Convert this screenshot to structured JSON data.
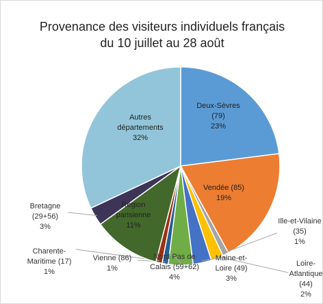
{
  "chart_data": {
    "type": "pie",
    "title": "Provenance des visiteurs individuels français du 10 juillet au 28 août",
    "categories": [
      "Deux-Sèvres (79)",
      "Vendée (85)",
      "Ille-et-Vilaine (35)",
      "Loire-Atlantique (44)",
      "Maine-et-Loire (49)",
      "Nord Pas de Calais (59+62)",
      "Vienne (86)",
      "Charente-Maritime (17)",
      "Région parisienne",
      "Bretagne (29+56)",
      "Autres départements"
    ],
    "values": [
      23,
      19,
      1,
      2,
      3,
      4,
      1,
      1,
      11,
      3,
      32
    ],
    "value_labels": [
      "23%",
      "19%",
      "1%",
      "2%",
      "3%",
      "4%",
      "1%",
      "1%",
      "11%",
      "3%",
      "32%"
    ],
    "colors": [
      "#5b9bd5",
      "#ed7d31",
      "#a5a5a5",
      "#ffc000",
      "#4472c4",
      "#70ad47",
      "#255e91",
      "#9e2f10",
      "#43682b",
      "#3d3558",
      "#92c5d9"
    ]
  }
}
